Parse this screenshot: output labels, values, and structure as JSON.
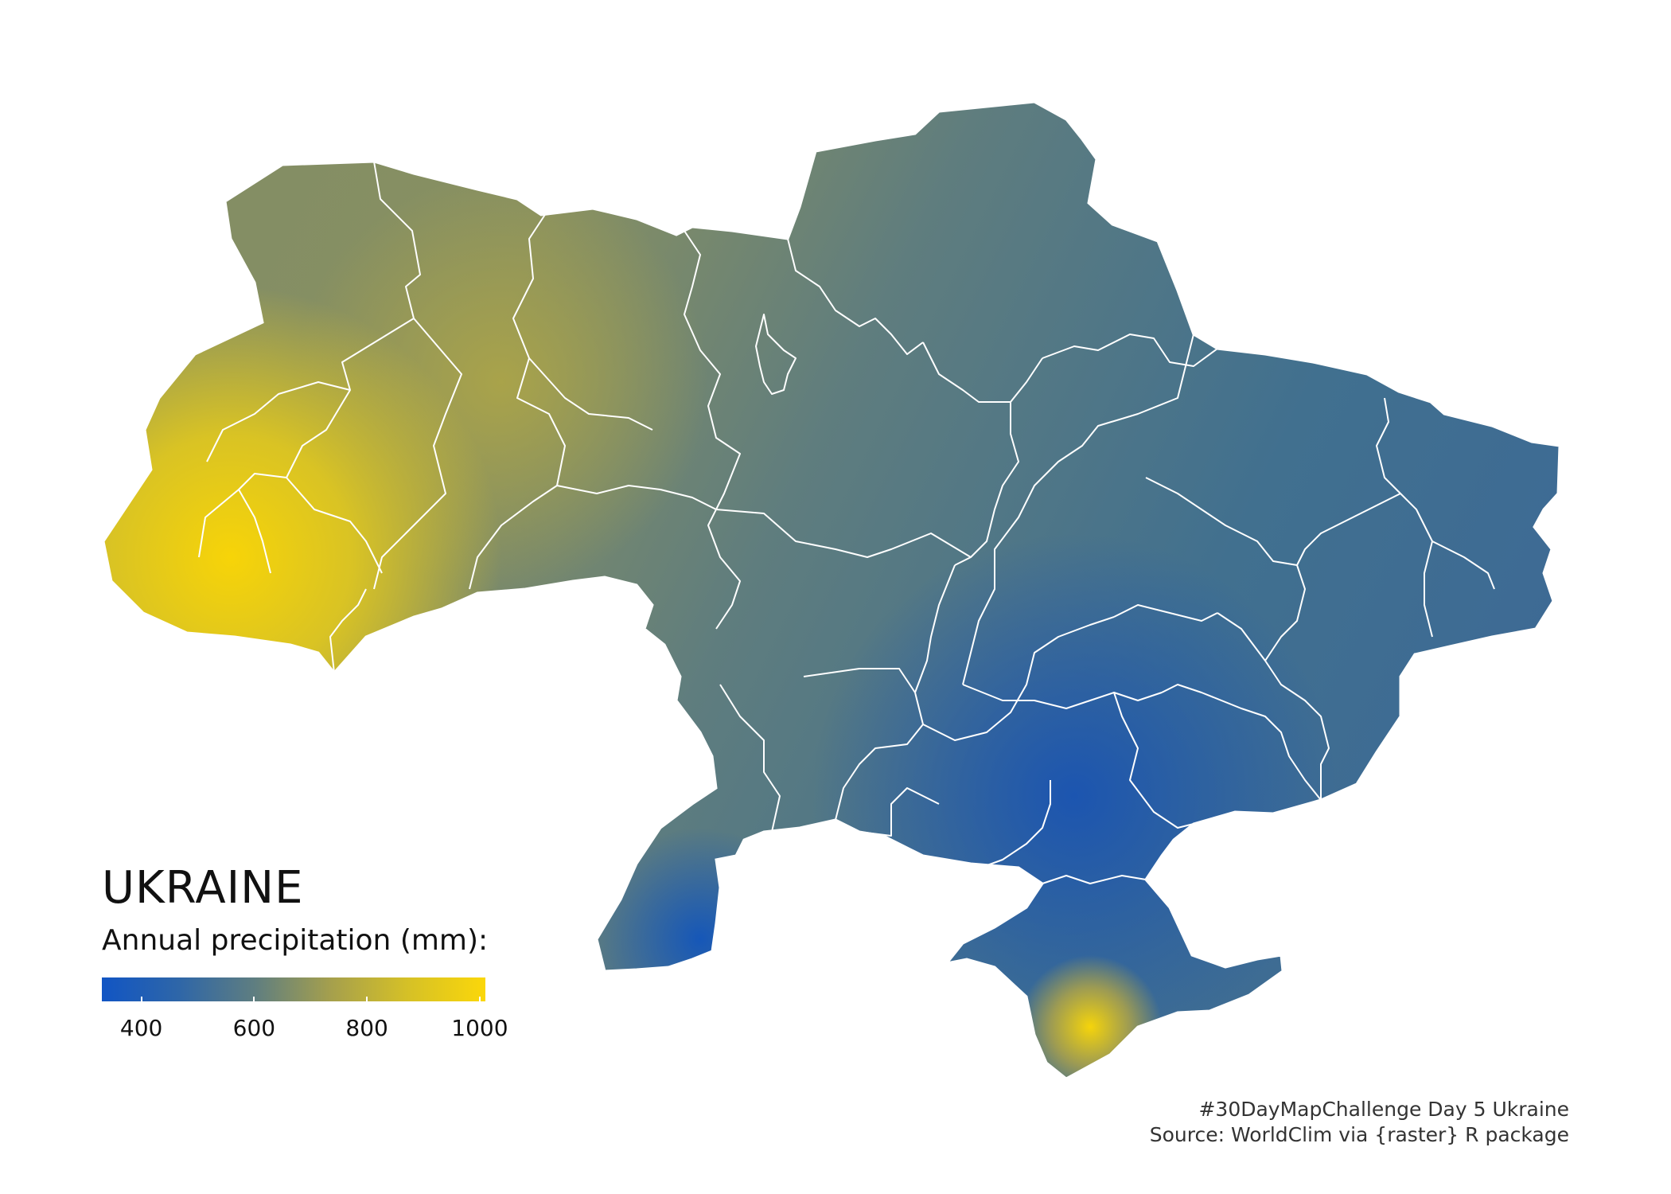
{
  "title": "UKRAINE",
  "legend": {
    "title": "Annual precipitation (mm):",
    "min": 330,
    "max": 1010,
    "ticks": [
      400,
      600,
      800,
      1000
    ],
    "colors": [
      "#1155c4",
      "#2e66a8",
      "#5f7e80",
      "#a6a04c",
      "#d6c126",
      "#fbd70a"
    ]
  },
  "caption": {
    "line1": "#30DayMapChallenge Day 5 Ukraine",
    "line2": "Source: WorldClim via {raster} R package"
  },
  "map": {
    "country": "Ukraine",
    "boundary_color": "#ffffff",
    "background": "#ffffff"
  }
}
